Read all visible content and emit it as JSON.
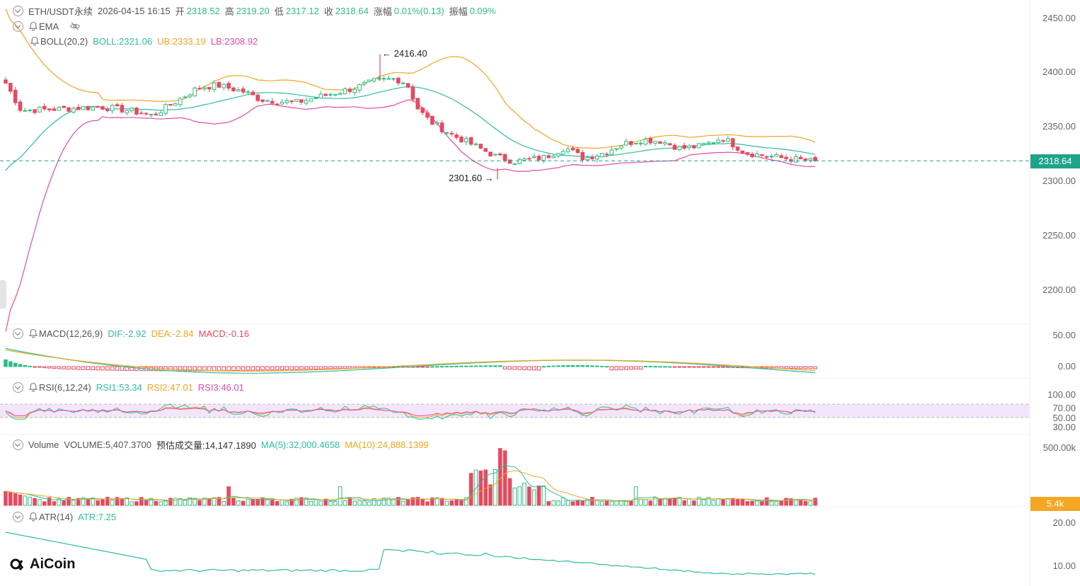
{
  "header": {
    "symbol": "ETH/USDT永续",
    "datetime": "2026-04-15 16:15",
    "open_label": "开",
    "open": "2318.52",
    "high_label": "高",
    "high": "2319.20",
    "low_label": "低",
    "low": "2317.12",
    "close_label": "收",
    "close": "2318.64",
    "change_label": "涨幅",
    "change": "0.01%(0.13)",
    "amp_label": "振幅",
    "amp": "0.09%"
  },
  "indicators": {
    "ema": {
      "label": "EMA",
      "icon": "eye-off-icon"
    },
    "boll": {
      "label": "BOLL(20,2)",
      "mid": "BOLL:2321.06",
      "ub": "UB:2333.19",
      "lb": "LB:2308.92"
    },
    "macd": {
      "label": "MACD(12,26,9)",
      "dif": "DIF:-2.92",
      "dea": "DEA:-2.84",
      "macd": "MACD:-0.16"
    },
    "rsi": {
      "label": "RSI(6,12,24)",
      "rsi1": "RSI1:53.34",
      "rsi2": "RSI2:47.01",
      "rsi3": "RSI3:46.01"
    },
    "volume": {
      "label": "Volume",
      "volume": "VOLUME:5,407.3700",
      "est": "预估成交量:14,147.1890",
      "ma5": "MA(5):32,000.4658",
      "ma10": "MA(10):24,888.1399"
    },
    "atr": {
      "label": "ATR(14)",
      "atr": "ATR:7.25"
    }
  },
  "axis": {
    "price_ticks": [
      "2450.00",
      "2400.00",
      "2350.00",
      "2300.00",
      "2250.00",
      "2200.00"
    ],
    "macd_ticks": [
      "50.00",
      "0.00"
    ],
    "rsi_ticks": [
      "100.00",
      "70.00",
      "50.00",
      "30.00"
    ],
    "volume_ticks": [
      "500.00k"
    ],
    "atr_ticks": [
      "20.00",
      "10.00"
    ],
    "last_price": "2318.64",
    "last_volume": "5.4k"
  },
  "annotations": {
    "max": "2416.40",
    "min": "2301.60"
  },
  "logo": "AiCoin",
  "colors": {
    "up": "#2ebd85",
    "down": "#e54a5f",
    "boll_mid": "#2ebd9e",
    "boll_ub": "#f0a520",
    "boll_lb": "#dd4ea8",
    "dif": "#2ebd9e",
    "dea": "#f0a520",
    "rsi3": "#dd4ea8",
    "last_price_tag": "#1fa38a",
    "volume_tag": "#f5a623"
  },
  "chart_data": {
    "type": "candlestick",
    "panels": [
      "price",
      "macd",
      "rsi",
      "volume",
      "atr"
    ],
    "price_range": [
      2180,
      2460
    ],
    "last_price": 2318.64,
    "max": 2416.4,
    "min": 2301.6,
    "current_values": {
      "BOLL": 2321.06,
      "UB": 2333.19,
      "LB": 2308.92,
      "DIF": -2.92,
      "DEA": -2.84,
      "MACD": -0.16,
      "RSI1": 53.34,
      "RSI2": 47.01,
      "RSI3": 46.01,
      "VOLUME": 5407.37,
      "MA5": 32000.4658,
      "MA10": 24888.1399,
      "ATR": 7.25
    }
  }
}
